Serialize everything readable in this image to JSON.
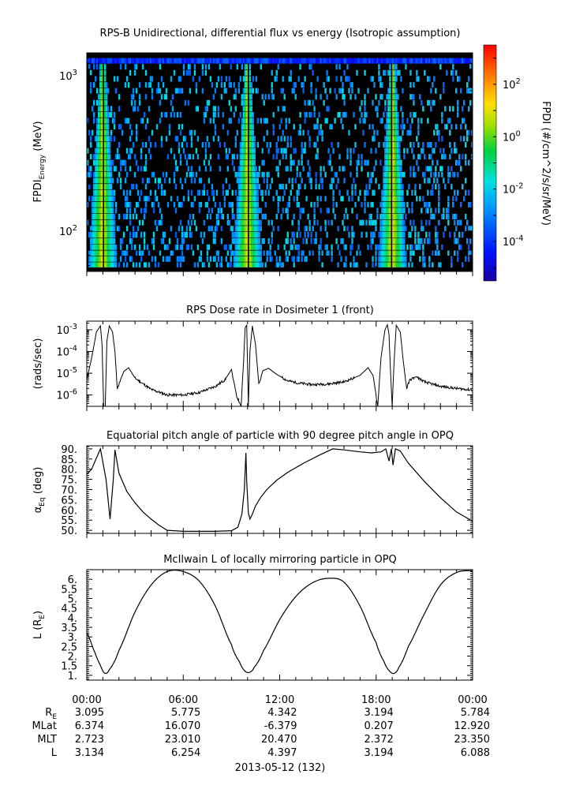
{
  "chart_data": [
    {
      "type": "heatmap",
      "panel": "spectrogram",
      "title": "RPS-B  Unidirectional, differential flux vs energy (Isotropic assumption)",
      "ylabel_main": "FPDI",
      "ylabel_sub": "Energy",
      "ylabel_units": " (MeV)",
      "yscale": "log",
      "ylim": [
        55,
        1400
      ],
      "y_ticks": [
        {
          "value": 100,
          "base": "10",
          "exp": "2"
        },
        {
          "value": 1000,
          "base": "10",
          "exp": "3"
        }
      ],
      "xlim_hours": [
        0,
        24
      ],
      "energy_bins_mev": [
        58,
        63,
        69,
        75,
        82,
        90,
        99,
        108,
        118,
        129,
        141,
        154,
        168,
        184,
        201,
        220,
        240,
        262,
        287,
        313,
        342,
        374,
        409,
        447,
        488,
        534,
        583,
        637,
        696,
        761,
        831,
        908,
        993,
        1085,
        1186,
        1296
      ],
      "belt_crossings_hours": [
        1.0,
        10.0,
        19.0
      ],
      "description_values": {
        "peak_log10_flux_in_belts": 0.5,
        "background_log10_flux": -3.0,
        "top_channel_log10_flux": -4.0
      },
      "colorbar": {
        "label": "FPDI (#/cm^2/s/sr/MeV)",
        "range_log10": [
          -5.5,
          3.5
        ],
        "ticks": [
          {
            "value": 2,
            "base": "10",
            "exp": "2"
          },
          {
            "value": 0,
            "base": "10",
            "exp": "0"
          },
          {
            "value": -2,
            "base": "10",
            "exp": "-2"
          },
          {
            "value": -4,
            "base": "10",
            "exp": "-4"
          }
        ]
      }
    },
    {
      "type": "line",
      "panel": "dose",
      "title": "RPS  Dose rate in Dosimeter 1 (front)",
      "ylabel": "(rads/sec)",
      "yscale": "log",
      "ylim": [
        3e-07,
        0.0025
      ],
      "y_ticks": [
        {
          "value": 0.001,
          "base": "10",
          "exp": "-3"
        },
        {
          "value": 0.0001,
          "base": "10",
          "exp": "-4"
        },
        {
          "value": 1e-05,
          "base": "10",
          "exp": "-5"
        },
        {
          "value": 1e-06,
          "base": "10",
          "exp": "-6"
        }
      ],
      "x_hours": [
        0.0,
        0.3,
        0.6,
        0.85,
        0.95,
        1.05,
        1.15,
        1.25,
        1.4,
        1.6,
        1.75,
        1.9,
        2.3,
        2.6,
        3.0,
        4.0,
        5.0,
        6.0,
        7.0,
        8.0,
        8.6,
        9.0,
        9.3,
        9.6,
        9.75,
        9.85,
        9.95,
        10.05,
        10.15,
        10.3,
        10.5,
        10.7,
        10.95,
        11.3,
        11.8,
        12.5,
        13.2,
        14.0,
        15.0,
        16.0,
        17.0,
        17.5,
        17.8,
        18.1,
        18.3,
        18.55,
        18.7,
        18.8,
        18.9,
        19.0,
        19.1,
        19.25,
        19.5,
        19.7,
        19.9,
        20.1,
        20.5,
        21.0,
        22.0,
        23.0,
        24.0
      ],
      "y_rads_per_sec": [
        5e-06,
        5e-05,
        0.0008,
        0.0015,
        0.0002,
        3e-07,
        3e-07,
        0.0003,
        0.0015,
        0.0008,
        0.0001,
        2e-06,
        1.2e-05,
        1.8e-05,
        6e-06,
        1.8e-06,
        1e-06,
        1e-06,
        1.3e-06,
        2.5e-06,
        5e-06,
        1.5e-05,
        1e-06,
        3e-07,
        3e-05,
        0.0012,
        0.0017,
        3e-07,
        0.0001,
        0.0015,
        0.0002,
        3e-06,
        1.3e-05,
        1.7e-05,
        9e-06,
        4.5e-06,
        3.5e-06,
        3e-06,
        3.2e-06,
        4e-06,
        8e-06,
        1.8e-05,
        8e-06,
        3e-07,
        5e-05,
        0.001,
        0.0017,
        0.0006,
        1e-05,
        3e-07,
        2e-05,
        0.0016,
        0.0008,
        3e-05,
        2e-06,
        5e-06,
        7e-06,
        4e-06,
        2.5e-06,
        2e-06,
        1.7e-06
      ]
    },
    {
      "type": "line",
      "panel": "pitch",
      "title": "Equatorial pitch angle of particle with 90 degree pitch angle in OPQ",
      "ylabel_main": "α",
      "ylabel_sub": "Eq",
      "ylabel_units": " (deg)",
      "ylim": [
        48.5,
        91.5
      ],
      "y_ticks": [
        "90.",
        "85.",
        "80.",
        "75.",
        "70.",
        "65.",
        "60.",
        "55.",
        "50."
      ],
      "y_tick_values": [
        90,
        85,
        80,
        75,
        70,
        65,
        60,
        55,
        50
      ],
      "x_hours": [
        0.0,
        0.3,
        0.6,
        0.85,
        1.2,
        1.45,
        1.65,
        1.75,
        2.0,
        2.5,
        3.0,
        3.5,
        4.0,
        4.5,
        5.0,
        6.0,
        7.0,
        8.0,
        9.0,
        9.4,
        9.65,
        9.8,
        9.9,
        9.95,
        10.05,
        10.15,
        10.3,
        10.5,
        10.8,
        11.2,
        11.8,
        12.5,
        13.5,
        14.5,
        15.3,
        16.0,
        17.0,
        17.7,
        18.3,
        18.6,
        18.8,
        18.95,
        19.05,
        19.2,
        19.5,
        20.0,
        21.0,
        22.0,
        23.0,
        24.0
      ],
      "y_deg": [
        77.5,
        80.0,
        85.5,
        90.0,
        75.0,
        55.5,
        75.0,
        89.5,
        78.0,
        69.0,
        63.5,
        59.0,
        55.5,
        52.5,
        50.0,
        49.5,
        49.5,
        49.5,
        49.8,
        51.5,
        58.0,
        70.0,
        88.0,
        74.0,
        58.5,
        55.5,
        58.0,
        62.0,
        66.0,
        70.0,
        74.5,
        78.5,
        83.0,
        87.0,
        90.0,
        89.5,
        88.5,
        88.0,
        88.5,
        90.0,
        84.0,
        90.0,
        82.0,
        90.0,
        89.0,
        83.0,
        74.0,
        66.0,
        59.0,
        54.5
      ]
    },
    {
      "type": "line",
      "panel": "lshell",
      "title": "McIlwain L of locally mirroring particle in OPQ",
      "ylabel_main": "L (R",
      "ylabel_sub": "E",
      "ylabel_units": ")",
      "ylim": [
        0.75,
        6.5
      ],
      "y_ticks": [
        "6.",
        "5.5",
        "5.",
        "4.5",
        "4.",
        "3.5",
        "3.",
        "2.5",
        "2.",
        "1.5",
        "1."
      ],
      "y_tick_values": [
        6.0,
        5.5,
        5.0,
        4.5,
        4.0,
        3.5,
        3.0,
        2.5,
        2.0,
        1.5,
        1.0
      ],
      "x_hours": [
        0.0,
        0.5,
        0.8,
        1.1,
        1.4,
        2.0,
        3.0,
        4.0,
        5.0,
        6.0,
        7.0,
        8.0,
        9.0,
        9.5,
        9.8,
        10.1,
        10.4,
        11.0,
        12.0,
        13.0,
        14.0,
        15.0,
        16.0,
        17.0,
        18.0,
        18.5,
        18.8,
        19.1,
        19.4,
        20.0,
        21.0,
        22.0,
        23.0,
        24.0
      ],
      "y_L": [
        3.2,
        2.2,
        1.6,
        1.12,
        1.3,
        2.3,
        4.3,
        5.7,
        6.4,
        6.4,
        5.9,
        4.6,
        2.6,
        1.7,
        1.25,
        1.15,
        1.4,
        2.3,
        3.9,
        5.1,
        5.8,
        6.05,
        5.85,
        4.6,
        2.7,
        1.7,
        1.25,
        1.1,
        1.4,
        2.5,
        4.2,
        5.7,
        6.35,
        6.45
      ]
    }
  ],
  "x_axis": {
    "tick_labels": [
      "00:00",
      "06:00",
      "12:00",
      "18:00",
      "00:00"
    ],
    "tick_hours": [
      0,
      6,
      12,
      18,
      24
    ],
    "rows": [
      {
        "label_main": "R",
        "label_sub": "E",
        "values": [
          "3.095",
          "5.775",
          "4.342",
          "3.194",
          "5.784"
        ]
      },
      {
        "label_main": "MLat",
        "label_sub": "",
        "values": [
          "6.374",
          "16.070",
          "-6.379",
          "0.207",
          "12.920"
        ]
      },
      {
        "label_main": "MLT",
        "label_sub": "",
        "values": [
          "2.723",
          "23.010",
          "20.470",
          "2.372",
          "23.350"
        ]
      },
      {
        "label_main": "L",
        "label_sub": "",
        "values": [
          "3.134",
          "6.254",
          "4.397",
          "3.194",
          "6.088"
        ]
      }
    ],
    "date_label": "2013-05-12 (132)"
  }
}
